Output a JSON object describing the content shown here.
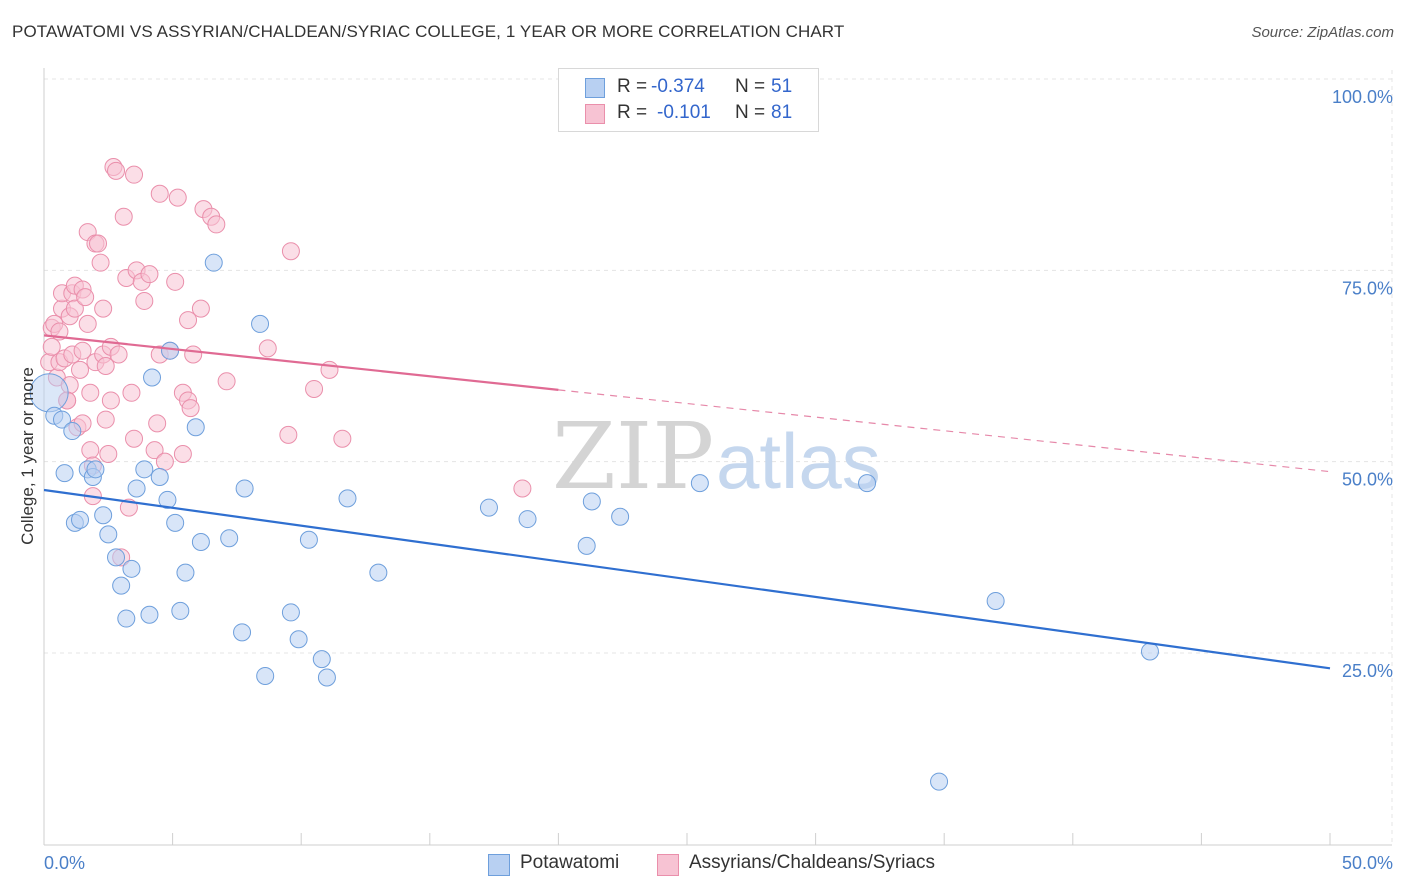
{
  "title": "POTAWATOMI VS ASSYRIAN/CHALDEAN/SYRIAC COLLEGE, 1 YEAR OR MORE CORRELATION CHART",
  "source": "Source: ZipAtlas.com",
  "watermark": {
    "zip": "ZIP",
    "atlas": "atlas"
  },
  "legend": {
    "r_label": "R =",
    "n_label": "N =",
    "series": [
      {
        "name": "Potawatomi",
        "r": "-0.374",
        "n": "51"
      },
      {
        "name": "Assyrians/Chaldeans/Syriacs",
        "r": "-0.101",
        "n": "81"
      }
    ]
  },
  "colors": {
    "blue_fill": "#b8d0f2",
    "blue_stroke": "#6e9fdc",
    "blue_line": "#2f6fd0",
    "pink_fill": "#f7c3d3",
    "pink_stroke": "#ea8fab",
    "pink_line": "#e06a93",
    "axis_text": "#4a7fc8",
    "grid": "#e4e4e4"
  },
  "chart_data": {
    "type": "scatter",
    "title": "POTAWATOMI VS ASSYRIAN/CHALDEAN/SYRIAC COLLEGE, 1 YEAR OR MORE CORRELATION CHART",
    "xlabel": "",
    "ylabel": "College, 1 year or more",
    "xlim": [
      0,
      50
    ],
    "ylim": [
      0,
      105
    ],
    "x_tick_labels": [
      "0.0%",
      "50.0%"
    ],
    "y_ticks": [
      25,
      50,
      75,
      100
    ],
    "y_tick_labels": [
      "25.0%",
      "50.0%",
      "75.0%",
      "100.0%"
    ],
    "series": [
      {
        "name": "Potawatomi",
        "color": "blue",
        "trend": {
          "x": [
            0,
            50
          ],
          "y": [
            46.3,
            23.0
          ],
          "dashed_from": null
        },
        "points": [
          {
            "x": 0.2,
            "y": 59.0,
            "big": true
          },
          {
            "x": 0.4,
            "y": 56.0
          },
          {
            "x": 0.7,
            "y": 55.5
          },
          {
            "x": 0.8,
            "y": 48.5
          },
          {
            "x": 1.1,
            "y": 54.0
          },
          {
            "x": 1.2,
            "y": 42.0
          },
          {
            "x": 1.4,
            "y": 42.4
          },
          {
            "x": 1.7,
            "y": 49.0
          },
          {
            "x": 1.9,
            "y": 48.0
          },
          {
            "x": 2.0,
            "y": 49.0
          },
          {
            "x": 2.3,
            "y": 43.0
          },
          {
            "x": 2.5,
            "y": 40.5
          },
          {
            "x": 2.8,
            "y": 37.5
          },
          {
            "x": 3.0,
            "y": 33.8
          },
          {
            "x": 3.2,
            "y": 29.5
          },
          {
            "x": 3.4,
            "y": 36.0
          },
          {
            "x": 3.6,
            "y": 46.5
          },
          {
            "x": 3.9,
            "y": 49.0
          },
          {
            "x": 4.1,
            "y": 30.0
          },
          {
            "x": 4.2,
            "y": 61.0
          },
          {
            "x": 4.5,
            "y": 48.0
          },
          {
            "x": 4.8,
            "y": 45.0
          },
          {
            "x": 4.9,
            "y": 64.5
          },
          {
            "x": 5.1,
            "y": 42.0
          },
          {
            "x": 5.3,
            "y": 30.5
          },
          {
            "x": 5.5,
            "y": 35.5
          },
          {
            "x": 5.9,
            "y": 54.5
          },
          {
            "x": 6.1,
            "y": 39.5
          },
          {
            "x": 6.6,
            "y": 76.0
          },
          {
            "x": 7.2,
            "y": 40.0
          },
          {
            "x": 7.7,
            "y": 27.7
          },
          {
            "x": 7.8,
            "y": 46.5
          },
          {
            "x": 8.4,
            "y": 68.0
          },
          {
            "x": 8.6,
            "y": 22.0
          },
          {
            "x": 9.6,
            "y": 30.3
          },
          {
            "x": 9.9,
            "y": 26.8
          },
          {
            "x": 10.3,
            "y": 39.8
          },
          {
            "x": 10.8,
            "y": 24.2
          },
          {
            "x": 11.0,
            "y": 21.8
          },
          {
            "x": 11.8,
            "y": 45.2
          },
          {
            "x": 13.0,
            "y": 35.5
          },
          {
            "x": 17.3,
            "y": 44.0
          },
          {
            "x": 18.8,
            "y": 42.5
          },
          {
            "x": 21.1,
            "y": 39.0
          },
          {
            "x": 21.3,
            "y": 44.8
          },
          {
            "x": 22.4,
            "y": 42.8
          },
          {
            "x": 25.5,
            "y": 47.2
          },
          {
            "x": 32.0,
            "y": 47.2
          },
          {
            "x": 37.0,
            "y": 31.8
          },
          {
            "x": 43.0,
            "y": 25.2
          },
          {
            "x": 34.8,
            "y": 8.2
          }
        ]
      },
      {
        "name": "Assyrians/Chaldeans/Syriacs",
        "color": "pink",
        "trend": {
          "x": [
            0,
            50
          ],
          "y": [
            66.5,
            48.7
          ],
          "dashed_from": 20
        },
        "points": [
          {
            "x": 0.2,
            "y": 63.0
          },
          {
            "x": 0.3,
            "y": 65.0
          },
          {
            "x": 0.3,
            "y": 67.5
          },
          {
            "x": 0.4,
            "y": 68.0
          },
          {
            "x": 0.5,
            "y": 61.0
          },
          {
            "x": 0.6,
            "y": 63.0
          },
          {
            "x": 0.6,
            "y": 67.0
          },
          {
            "x": 0.7,
            "y": 70.0
          },
          {
            "x": 0.7,
            "y": 72.0
          },
          {
            "x": 0.8,
            "y": 63.5
          },
          {
            "x": 0.9,
            "y": 58.0
          },
          {
            "x": 1.0,
            "y": 69.0
          },
          {
            "x": 1.0,
            "y": 60.0
          },
          {
            "x": 1.1,
            "y": 72.0
          },
          {
            "x": 1.1,
            "y": 64.0
          },
          {
            "x": 1.2,
            "y": 73.0
          },
          {
            "x": 1.2,
            "y": 70.0
          },
          {
            "x": 1.3,
            "y": 54.5
          },
          {
            "x": 1.4,
            "y": 62.0
          },
          {
            "x": 1.5,
            "y": 64.5
          },
          {
            "x": 1.5,
            "y": 55.0
          },
          {
            "x": 1.5,
            "y": 72.5
          },
          {
            "x": 1.6,
            "y": 71.5
          },
          {
            "x": 1.7,
            "y": 68.0
          },
          {
            "x": 1.7,
            "y": 80.0
          },
          {
            "x": 1.8,
            "y": 59.0
          },
          {
            "x": 1.8,
            "y": 51.5
          },
          {
            "x": 1.9,
            "y": 45.5
          },
          {
            "x": 1.9,
            "y": 49.5
          },
          {
            "x": 2.0,
            "y": 63.0
          },
          {
            "x": 2.0,
            "y": 78.5
          },
          {
            "x": 2.1,
            "y": 78.5
          },
          {
            "x": 2.2,
            "y": 76.0
          },
          {
            "x": 2.3,
            "y": 70.0
          },
          {
            "x": 2.3,
            "y": 64.0
          },
          {
            "x": 2.4,
            "y": 55.5
          },
          {
            "x": 2.5,
            "y": 51.0
          },
          {
            "x": 2.6,
            "y": 65.0
          },
          {
            "x": 2.6,
            "y": 58.0
          },
          {
            "x": 2.7,
            "y": 88.5
          },
          {
            "x": 2.8,
            "y": 88.0
          },
          {
            "x": 2.9,
            "y": 64.0
          },
          {
            "x": 3.0,
            "y": 37.5
          },
          {
            "x": 3.1,
            "y": 82.0
          },
          {
            "x": 3.2,
            "y": 74.0
          },
          {
            "x": 3.3,
            "y": 44.0
          },
          {
            "x": 3.4,
            "y": 59.0
          },
          {
            "x": 3.5,
            "y": 53.0
          },
          {
            "x": 3.5,
            "y": 87.5
          },
          {
            "x": 3.6,
            "y": 75.0
          },
          {
            "x": 3.8,
            "y": 73.5
          },
          {
            "x": 3.9,
            "y": 71.0
          },
          {
            "x": 4.1,
            "y": 74.5
          },
          {
            "x": 4.3,
            "y": 51.5
          },
          {
            "x": 4.4,
            "y": 55.0
          },
          {
            "x": 4.5,
            "y": 64.0
          },
          {
            "x": 4.5,
            "y": 85.0
          },
          {
            "x": 4.7,
            "y": 50.0
          },
          {
            "x": 4.9,
            "y": 64.5
          },
          {
            "x": 5.1,
            "y": 73.5
          },
          {
            "x": 5.2,
            "y": 84.5
          },
          {
            "x": 5.4,
            "y": 51.0
          },
          {
            "x": 5.4,
            "y": 59.0
          },
          {
            "x": 5.6,
            "y": 68.5
          },
          {
            "x": 5.6,
            "y": 58.0
          },
          {
            "x": 5.7,
            "y": 57.0
          },
          {
            "x": 5.8,
            "y": 64.0
          },
          {
            "x": 6.1,
            "y": 70.0
          },
          {
            "x": 6.2,
            "y": 83.0
          },
          {
            "x": 6.5,
            "y": 82.0
          },
          {
            "x": 6.7,
            "y": 81.0
          },
          {
            "x": 7.1,
            "y": 60.5
          },
          {
            "x": 8.7,
            "y": 64.8
          },
          {
            "x": 9.5,
            "y": 53.5
          },
          {
            "x": 9.6,
            "y": 77.5
          },
          {
            "x": 10.5,
            "y": 59.5
          },
          {
            "x": 11.1,
            "y": 62.0
          },
          {
            "x": 11.6,
            "y": 53.0
          },
          {
            "x": 18.6,
            "y": 46.5
          },
          {
            "x": 0.9,
            "y": 58.0
          },
          {
            "x": 2.4,
            "y": 62.5
          }
        ]
      }
    ]
  }
}
